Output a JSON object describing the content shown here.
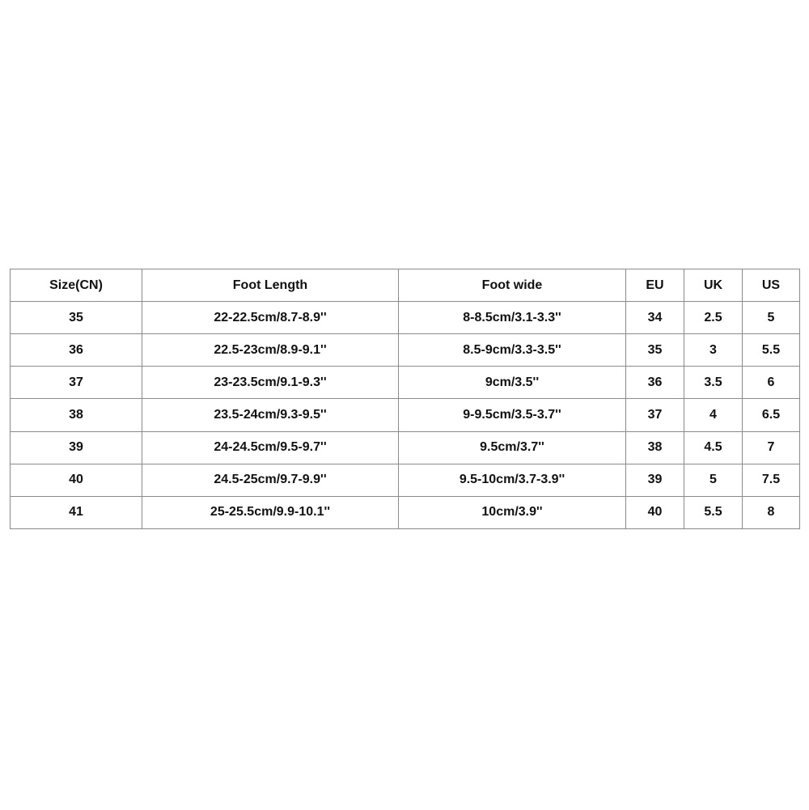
{
  "size_chart": {
    "headers": [
      "Size(CN)",
      "Foot Length",
      "Foot wide",
      "EU",
      "UK",
      "US"
    ],
    "rows": [
      [
        "35",
        "22-22.5cm/8.7-8.9''",
        "8-8.5cm/3.1-3.3''",
        "34",
        "2.5",
        "5"
      ],
      [
        "36",
        "22.5-23cm/8.9-9.1''",
        "8.5-9cm/3.3-3.5''",
        "35",
        "3",
        "5.5"
      ],
      [
        "37",
        "23-23.5cm/9.1-9.3''",
        "9cm/3.5''",
        "36",
        "3.5",
        "6"
      ],
      [
        "38",
        "23.5-24cm/9.3-9.5''",
        "9-9.5cm/3.5-3.7''",
        "37",
        "4",
        "6.5"
      ],
      [
        "39",
        "24-24.5cm/9.5-9.7''",
        "9.5cm/3.7''",
        "38",
        "4.5",
        "7"
      ],
      [
        "40",
        "24.5-25cm/9.7-9.9''",
        "9.5-10cm/3.7-3.9''",
        "39",
        "5",
        "7.5"
      ],
      [
        "41",
        "25-25.5cm/9.9-10.1''",
        "10cm/3.9''",
        "40",
        "5.5",
        "8"
      ]
    ]
  }
}
